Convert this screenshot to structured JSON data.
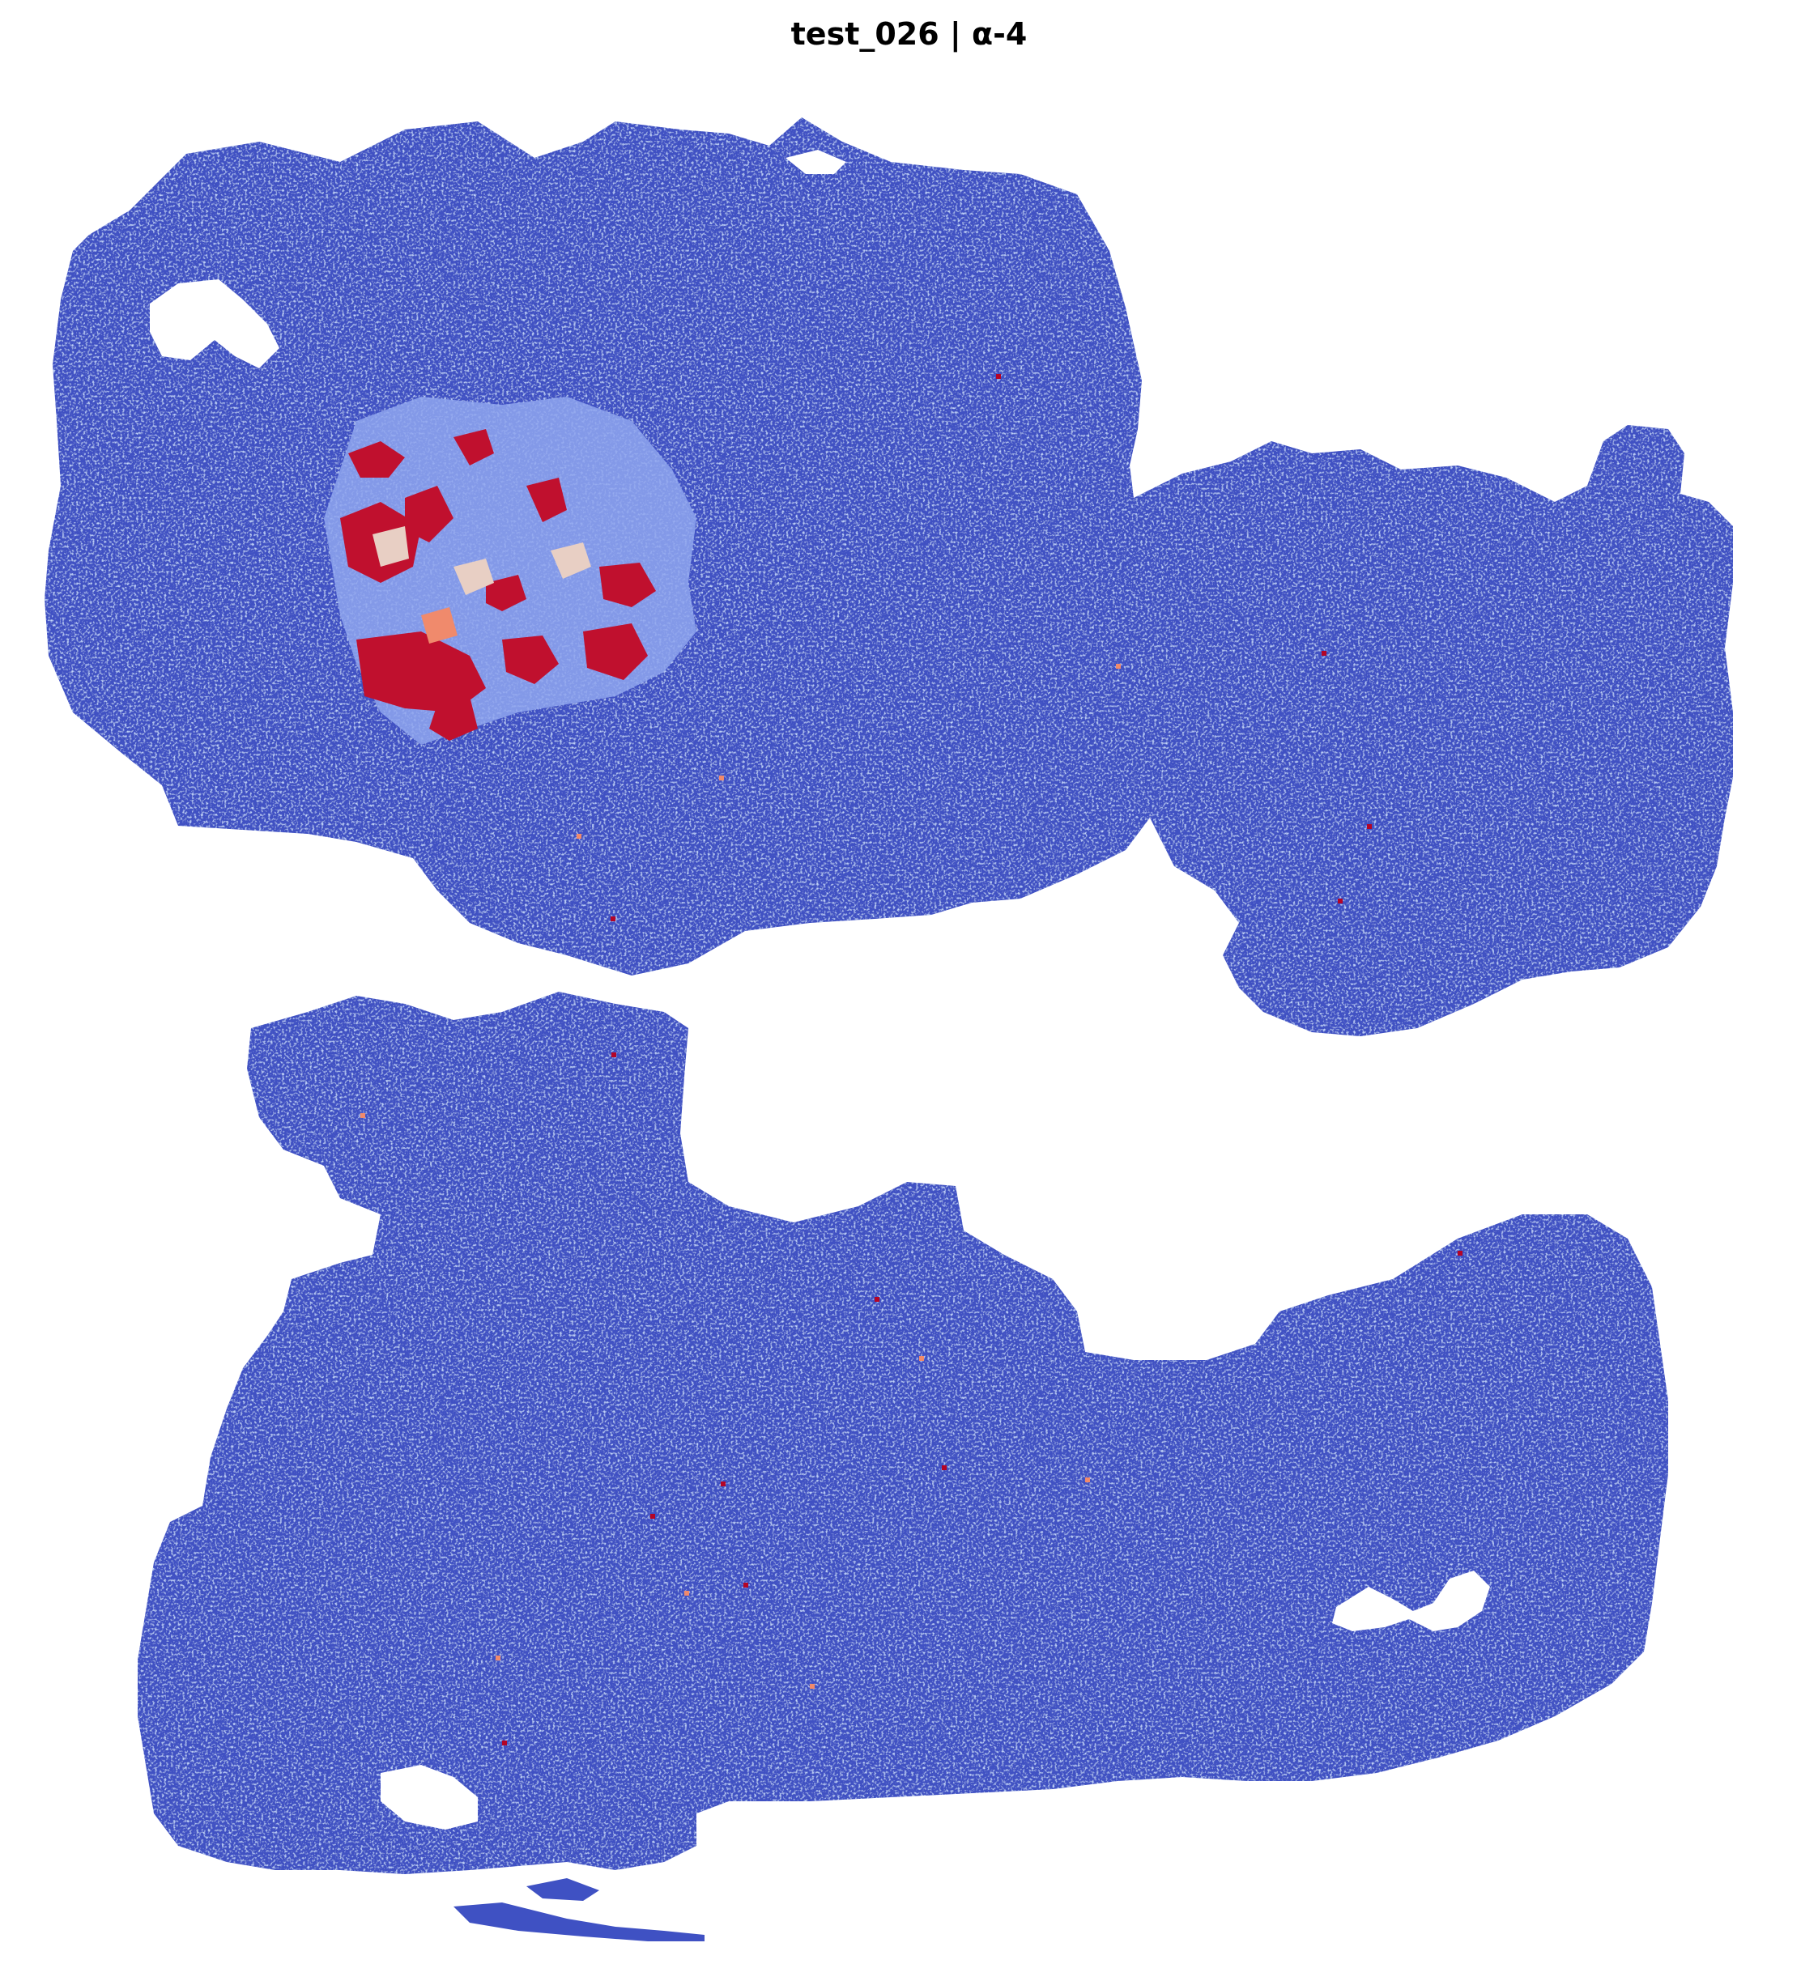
{
  "title": "test_026 | α-4",
  "colormap": {
    "low": "#3b4cc0",
    "mid_low": "#6f8fe8",
    "mid": "#dddcdc",
    "high": "#f08a6c",
    "max": "#b40426"
  },
  "legend": "none",
  "axes": "off"
}
